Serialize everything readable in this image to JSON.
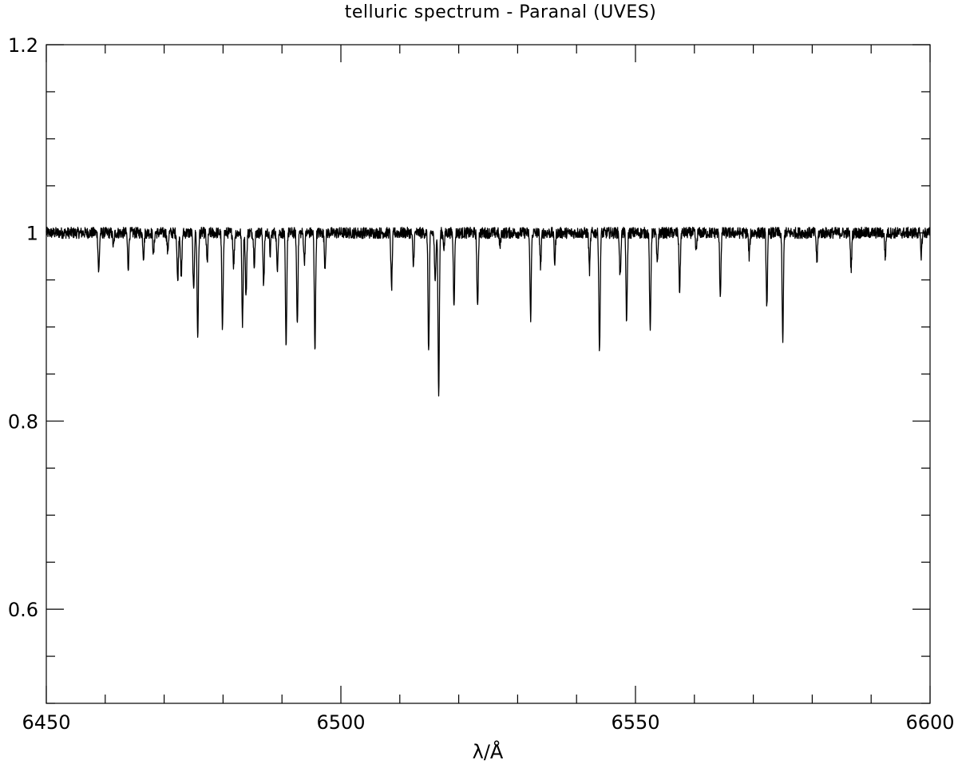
{
  "chart_data": {
    "type": "line",
    "title": "telluric spectrum - Paranal (UVES)",
    "xlabel": "λ/Å",
    "ylabel": "",
    "xlim": [
      6450,
      6600
    ],
    "ylim": [
      0.5,
      1.2
    ],
    "x_ticks": [
      6450,
      6500,
      6550,
      6600
    ],
    "x_tick_labels": [
      "6450",
      "6500",
      "6550",
      "6600"
    ],
    "x_minor_step": 10,
    "y_ticks": [
      0.6,
      0.8,
      1.0,
      1.2
    ],
    "y_tick_labels": [
      "0.6",
      "0.8",
      "1",
      "1.2"
    ],
    "y_minor_step": 0.05,
    "grid": false,
    "legend": "none",
    "continuum": 1.0,
    "noise_amplitude": 0.006,
    "series": [
      {
        "color": "#000000",
        "absorption_lines": [
          {
            "x": 6458.9,
            "y": 0.958
          },
          {
            "x": 6461.4,
            "y": 0.985
          },
          {
            "x": 6463.9,
            "y": 0.963
          },
          {
            "x": 6466.5,
            "y": 0.975
          },
          {
            "x": 6468.2,
            "y": 0.977
          },
          {
            "x": 6470.6,
            "y": 0.98
          },
          {
            "x": 6472.3,
            "y": 0.948
          },
          {
            "x": 6472.9,
            "y": 0.95
          },
          {
            "x": 6475.0,
            "y": 0.937
          },
          {
            "x": 6475.7,
            "y": 0.89
          },
          {
            "x": 6477.3,
            "y": 0.968
          },
          {
            "x": 6479.9,
            "y": 0.895
          },
          {
            "x": 6481.8,
            "y": 0.965
          },
          {
            "x": 6483.3,
            "y": 0.905
          },
          {
            "x": 6483.9,
            "y": 0.931
          },
          {
            "x": 6485.3,
            "y": 0.968
          },
          {
            "x": 6486.9,
            "y": 0.945
          },
          {
            "x": 6488.0,
            "y": 0.978
          },
          {
            "x": 6489.2,
            "y": 0.962
          },
          {
            "x": 6490.7,
            "y": 0.876
          },
          {
            "x": 6492.6,
            "y": 0.904
          },
          {
            "x": 6493.8,
            "y": 0.97
          },
          {
            "x": 6495.6,
            "y": 0.878
          },
          {
            "x": 6497.3,
            "y": 0.965
          },
          {
            "x": 6508.6,
            "y": 0.941
          },
          {
            "x": 6512.3,
            "y": 0.965
          },
          {
            "x": 6514.9,
            "y": 0.873
          },
          {
            "x": 6516.0,
            "y": 0.945
          },
          {
            "x": 6516.6,
            "y": 0.827
          },
          {
            "x": 6517.5,
            "y": 0.985
          },
          {
            "x": 6519.2,
            "y": 0.926
          },
          {
            "x": 6523.2,
            "y": 0.918
          },
          {
            "x": 6527.0,
            "y": 0.985
          },
          {
            "x": 6532.2,
            "y": 0.91
          },
          {
            "x": 6533.9,
            "y": 0.965
          },
          {
            "x": 6536.3,
            "y": 0.969
          },
          {
            "x": 6542.2,
            "y": 0.96
          },
          {
            "x": 6543.9,
            "y": 0.873
          },
          {
            "x": 6547.4,
            "y": 0.952
          },
          {
            "x": 6548.5,
            "y": 0.905
          },
          {
            "x": 6552.5,
            "y": 0.894
          },
          {
            "x": 6553.7,
            "y": 0.966
          },
          {
            "x": 6557.5,
            "y": 0.938
          },
          {
            "x": 6560.3,
            "y": 0.98
          },
          {
            "x": 6564.4,
            "y": 0.934
          },
          {
            "x": 6569.3,
            "y": 0.975
          },
          {
            "x": 6572.3,
            "y": 0.923
          },
          {
            "x": 6575.0,
            "y": 0.885
          },
          {
            "x": 6580.8,
            "y": 0.969
          },
          {
            "x": 6586.6,
            "y": 0.962
          },
          {
            "x": 6592.4,
            "y": 0.975
          },
          {
            "x": 6598.5,
            "y": 0.977
          }
        ]
      }
    ]
  }
}
